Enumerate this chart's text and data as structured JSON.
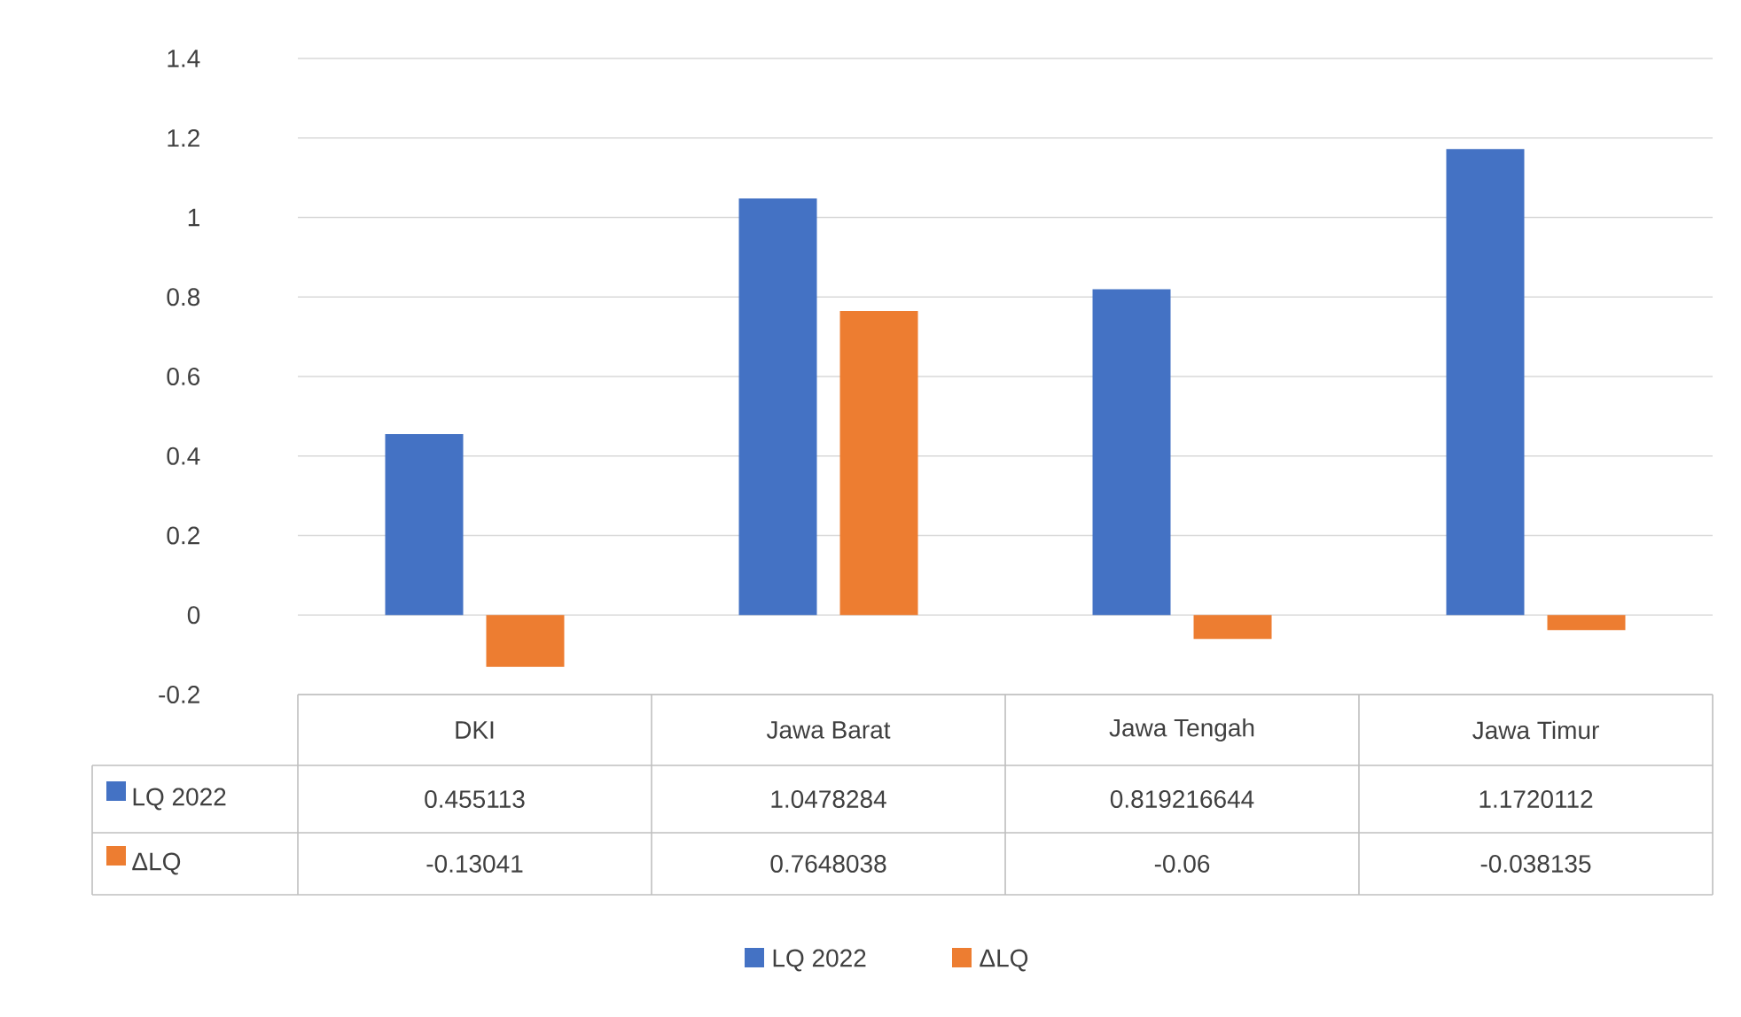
{
  "chart_data": {
    "type": "bar",
    "categories": [
      "DKI",
      "Jawa Barat",
      "Jawa Tengah",
      "Jawa Timur"
    ],
    "series": [
      {
        "name": "LQ 2022",
        "color": "#4472c4",
        "values": [
          0.455113,
          1.0478284,
          0.819216644,
          1.1720112
        ]
      },
      {
        "name": "ΔLQ",
        "color": "#ed7d31",
        "values": [
          -0.13041,
          0.7648038,
          -0.06,
          -0.038135
        ]
      }
    ],
    "ylim": [
      -0.2,
      1.4
    ],
    "yticks": [
      -0.2,
      0,
      0.2,
      0.4,
      0.6,
      0.8,
      1,
      1.2,
      1.4
    ],
    "grid": "y",
    "legend": "bottom",
    "data_labels": true
  }
}
